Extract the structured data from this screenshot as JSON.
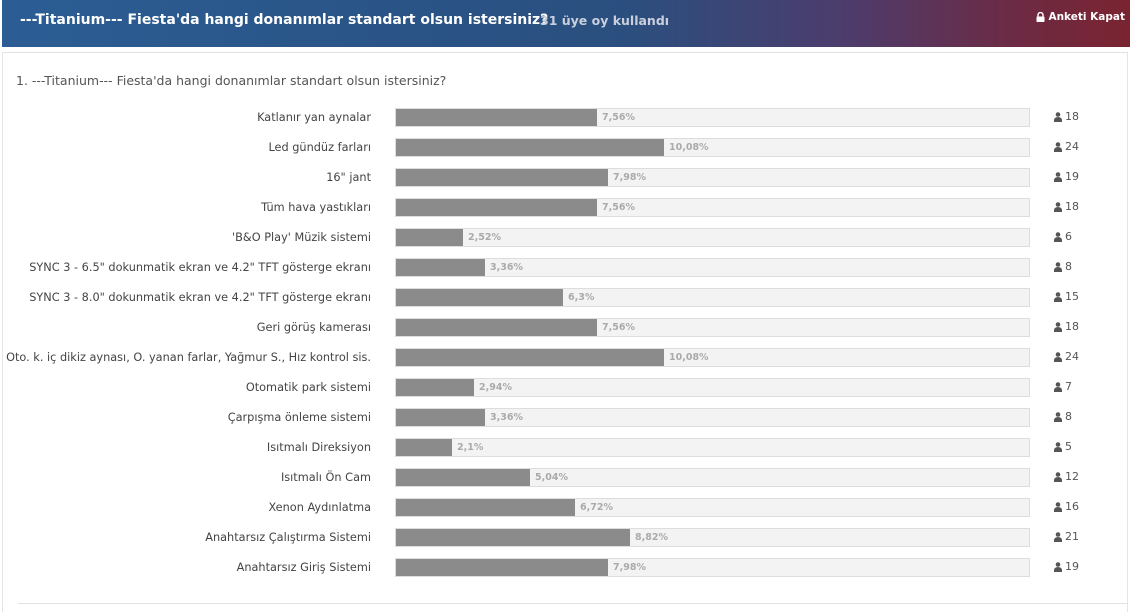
{
  "header": {
    "title": "---Titanium--- Fiesta'da hangi donanımlar standart olsun istersiniz?",
    "votes_text": "31 üye oy kullandı",
    "close_label": "Anketi Kapat"
  },
  "poll": {
    "question": "1. ---Titanium--- Fiesta'da hangi donanımlar standart olsun istersiniz?",
    "options": [
      {
        "label": "Katlanır yan aynalar",
        "percent_text": "7,56%",
        "percent": 7.56,
        "count": "18"
      },
      {
        "label": "Led gündüz farları",
        "percent_text": "10,08%",
        "percent": 10.08,
        "count": "24"
      },
      {
        "label": "16\" jant",
        "percent_text": "7,98%",
        "percent": 7.98,
        "count": "19"
      },
      {
        "label": "Tüm hava yastıkları",
        "percent_text": "7,56%",
        "percent": 7.56,
        "count": "18"
      },
      {
        "label": "'B&O Play' Müzik sistemi",
        "percent_text": "2,52%",
        "percent": 2.52,
        "count": "6"
      },
      {
        "label": "SYNC 3 - 6.5\" dokunmatik ekran ve 4.2\" TFT gösterge ekranı",
        "percent_text": "3,36%",
        "percent": 3.36,
        "count": "8"
      },
      {
        "label": "SYNC 3 - 8.0\" dokunmatik ekran ve 4.2\" TFT gösterge ekranı",
        "percent_text": "6,3%",
        "percent": 6.3,
        "count": "15"
      },
      {
        "label": "Geri görüş kamerası",
        "percent_text": "7,56%",
        "percent": 7.56,
        "count": "18"
      },
      {
        "label": "Oto. k. iç dikiz aynası, O. yanan farlar, Yağmur S., Hız kontrol sis.",
        "percent_text": "10,08%",
        "percent": 10.08,
        "count": "24"
      },
      {
        "label": "Otomatik park sistemi",
        "percent_text": "2,94%",
        "percent": 2.94,
        "count": "7"
      },
      {
        "label": "Çarpışma önleme sistemi",
        "percent_text": "3,36%",
        "percent": 3.36,
        "count": "8"
      },
      {
        "label": "Isıtmalı Direksiyon",
        "percent_text": "2,1%",
        "percent": 2.1,
        "count": "5"
      },
      {
        "label": "Isıtmalı Ön Cam",
        "percent_text": "5,04%",
        "percent": 5.04,
        "count": "12"
      },
      {
        "label": "Xenon Aydınlatma",
        "percent_text": "6,72%",
        "percent": 6.72,
        "count": "16"
      },
      {
        "label": "Anahtarsız Çalıştırma Sistemi",
        "percent_text": "8,82%",
        "percent": 8.82,
        "count": "21"
      },
      {
        "label": "Anahtarsız Giriş Sistemi",
        "percent_text": "7,98%",
        "percent": 7.98,
        "count": "19"
      }
    ]
  },
  "icons": {
    "close": "lock-icon",
    "voter": "user-icon"
  },
  "colors": {
    "bar": "#8b8b8b",
    "track": "#f3f3f3"
  }
}
